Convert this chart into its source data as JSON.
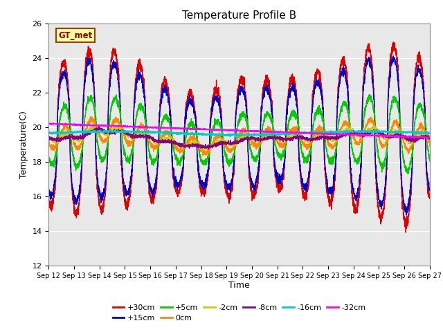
{
  "title": "Temperature Profile B",
  "xlabel": "Time",
  "ylabel": "Temperature(C)",
  "gt_label": "GT_met",
  "ylim": [
    12,
    26
  ],
  "xlim": [
    0,
    360
  ],
  "background_color": "#e8e8e8",
  "legend": [
    {
      "label": "+30cm",
      "color": "#dd0000"
    },
    {
      "label": "+15cm",
      "color": "#0000cc"
    },
    {
      "label": "+5cm",
      "color": "#00cc00"
    },
    {
      "label": "0cm",
      "color": "#ff8800"
    },
    {
      "label": "-2cm",
      "color": "#cccc00"
    },
    {
      "label": "-8cm",
      "color": "#880088"
    },
    {
      "label": "-16cm",
      "color": "#00cccc"
    },
    {
      "label": "-32cm",
      "color": "#ff00ff"
    }
  ],
  "tick_labels": [
    "Sep 12",
    "Sep 13",
    "Sep 14",
    "Sep 15",
    "Sep 16",
    "Sep 17",
    "Sep 18",
    "Sep 19",
    "Sep 20",
    "Sep 21",
    "Sep 22",
    "Sep 23",
    "Sep 24",
    "Sep 25",
    "Sep 26",
    "Sep 27"
  ],
  "tick_positions": [
    0,
    24,
    48,
    72,
    96,
    120,
    144,
    168,
    192,
    216,
    240,
    264,
    288,
    312,
    336,
    360
  ],
  "yticks": [
    12,
    14,
    16,
    18,
    20,
    22,
    24,
    26
  ]
}
